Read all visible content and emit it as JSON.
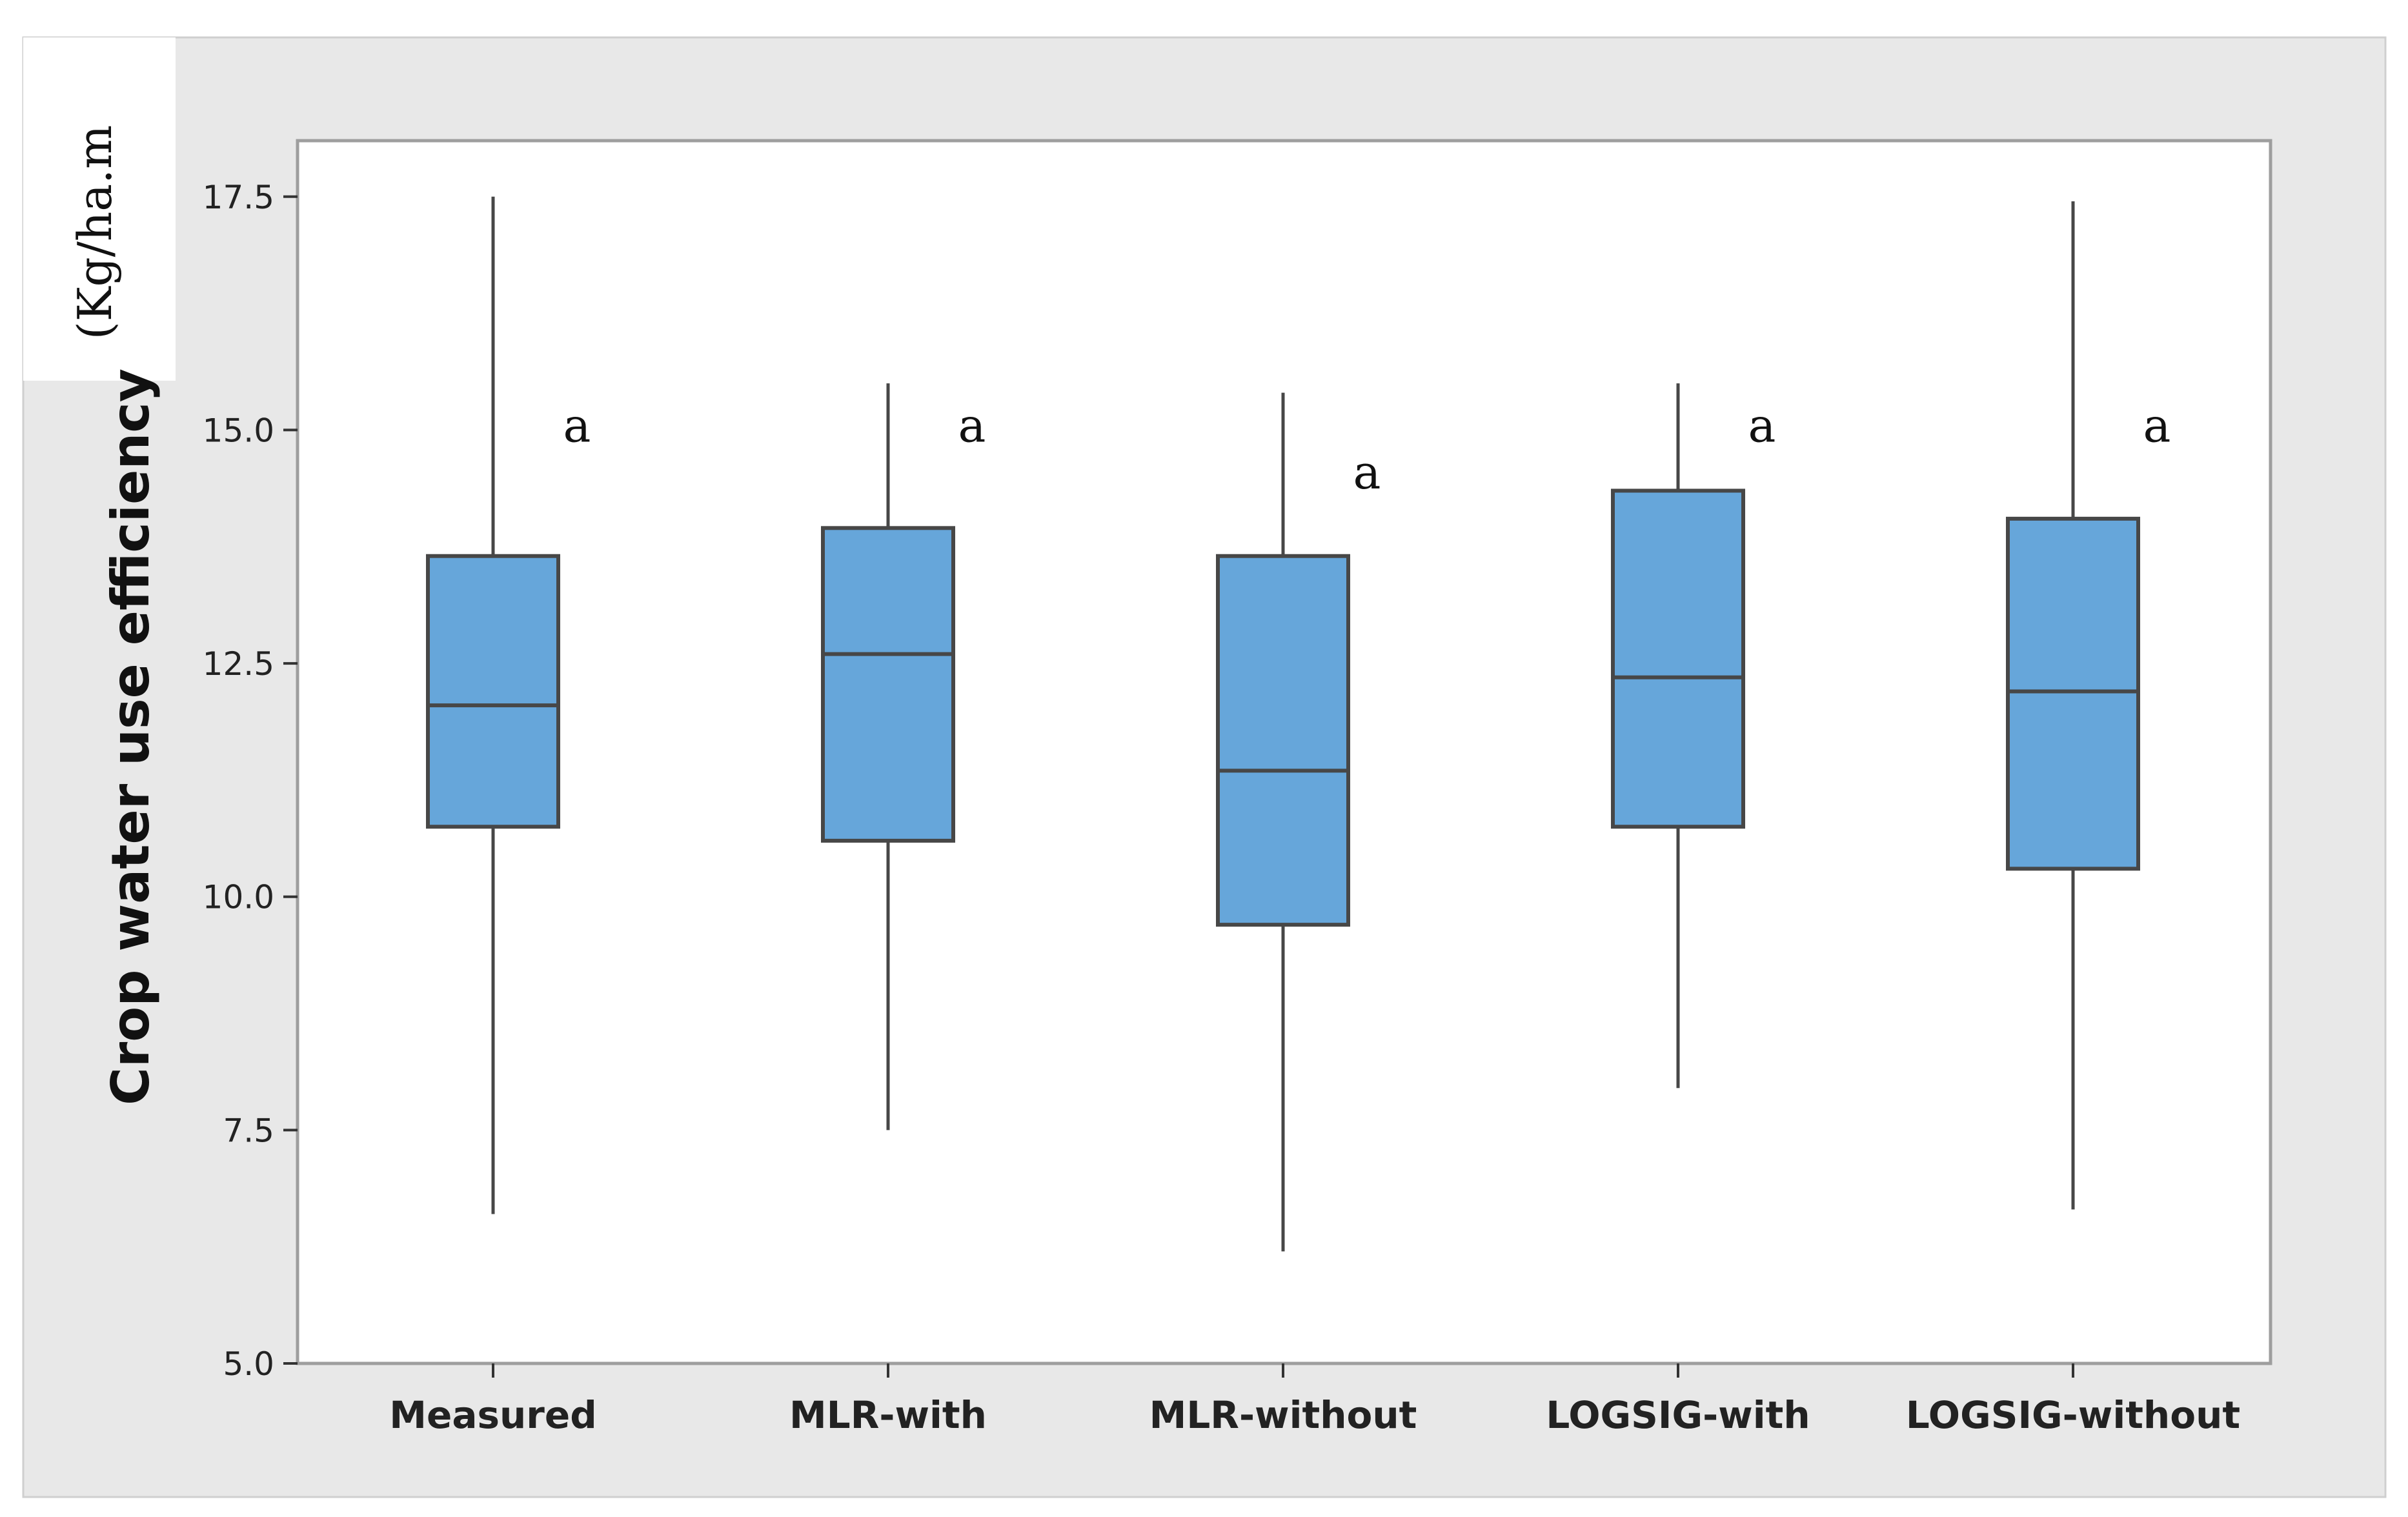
{
  "chart_data": {
    "type": "box",
    "ylabel": "Crop water use efficiency",
    "unit_label": "(Kg/ha.m",
    "ylim": [
      5.0,
      18.1
    ],
    "yticks": [
      5.0,
      7.5,
      10.0,
      12.5,
      15.0,
      17.5
    ],
    "ytick_labels": [
      "5.0",
      "7.5",
      "10.0",
      "12.5",
      "15.0",
      "17.5"
    ],
    "grid": false,
    "colors": {
      "box_fill": "#66a6da",
      "box_stroke": "#474747",
      "panel_background": "#e8e8e8",
      "plot_background": "#ffffff"
    },
    "series": [
      {
        "name": "Measured",
        "min": 6.6,
        "q1": 10.75,
        "median": 12.05,
        "q3": 13.65,
        "max": 17.5,
        "sig": "a",
        "sig_y": 15.0
      },
      {
        "name": "MLR-with",
        "min": 7.5,
        "q1": 10.6,
        "median": 12.6,
        "q3": 13.95,
        "max": 15.5,
        "sig": "a",
        "sig_y": 15.0
      },
      {
        "name": "MLR-without",
        "min": 6.2,
        "q1": 9.7,
        "median": 11.35,
        "q3": 13.65,
        "max": 15.4,
        "sig": "a",
        "sig_y": 14.5
      },
      {
        "name": "LOGSIG-with",
        "min": 7.95,
        "q1": 10.75,
        "median": 12.35,
        "q3": 14.35,
        "max": 15.5,
        "sig": "a",
        "sig_y": 15.0
      },
      {
        "name": "LOGSIG-without",
        "min": 6.65,
        "q1": 10.3,
        "median": 12.2,
        "q3": 14.05,
        "max": 17.45,
        "sig": "a",
        "sig_y": 15.0
      }
    ]
  }
}
